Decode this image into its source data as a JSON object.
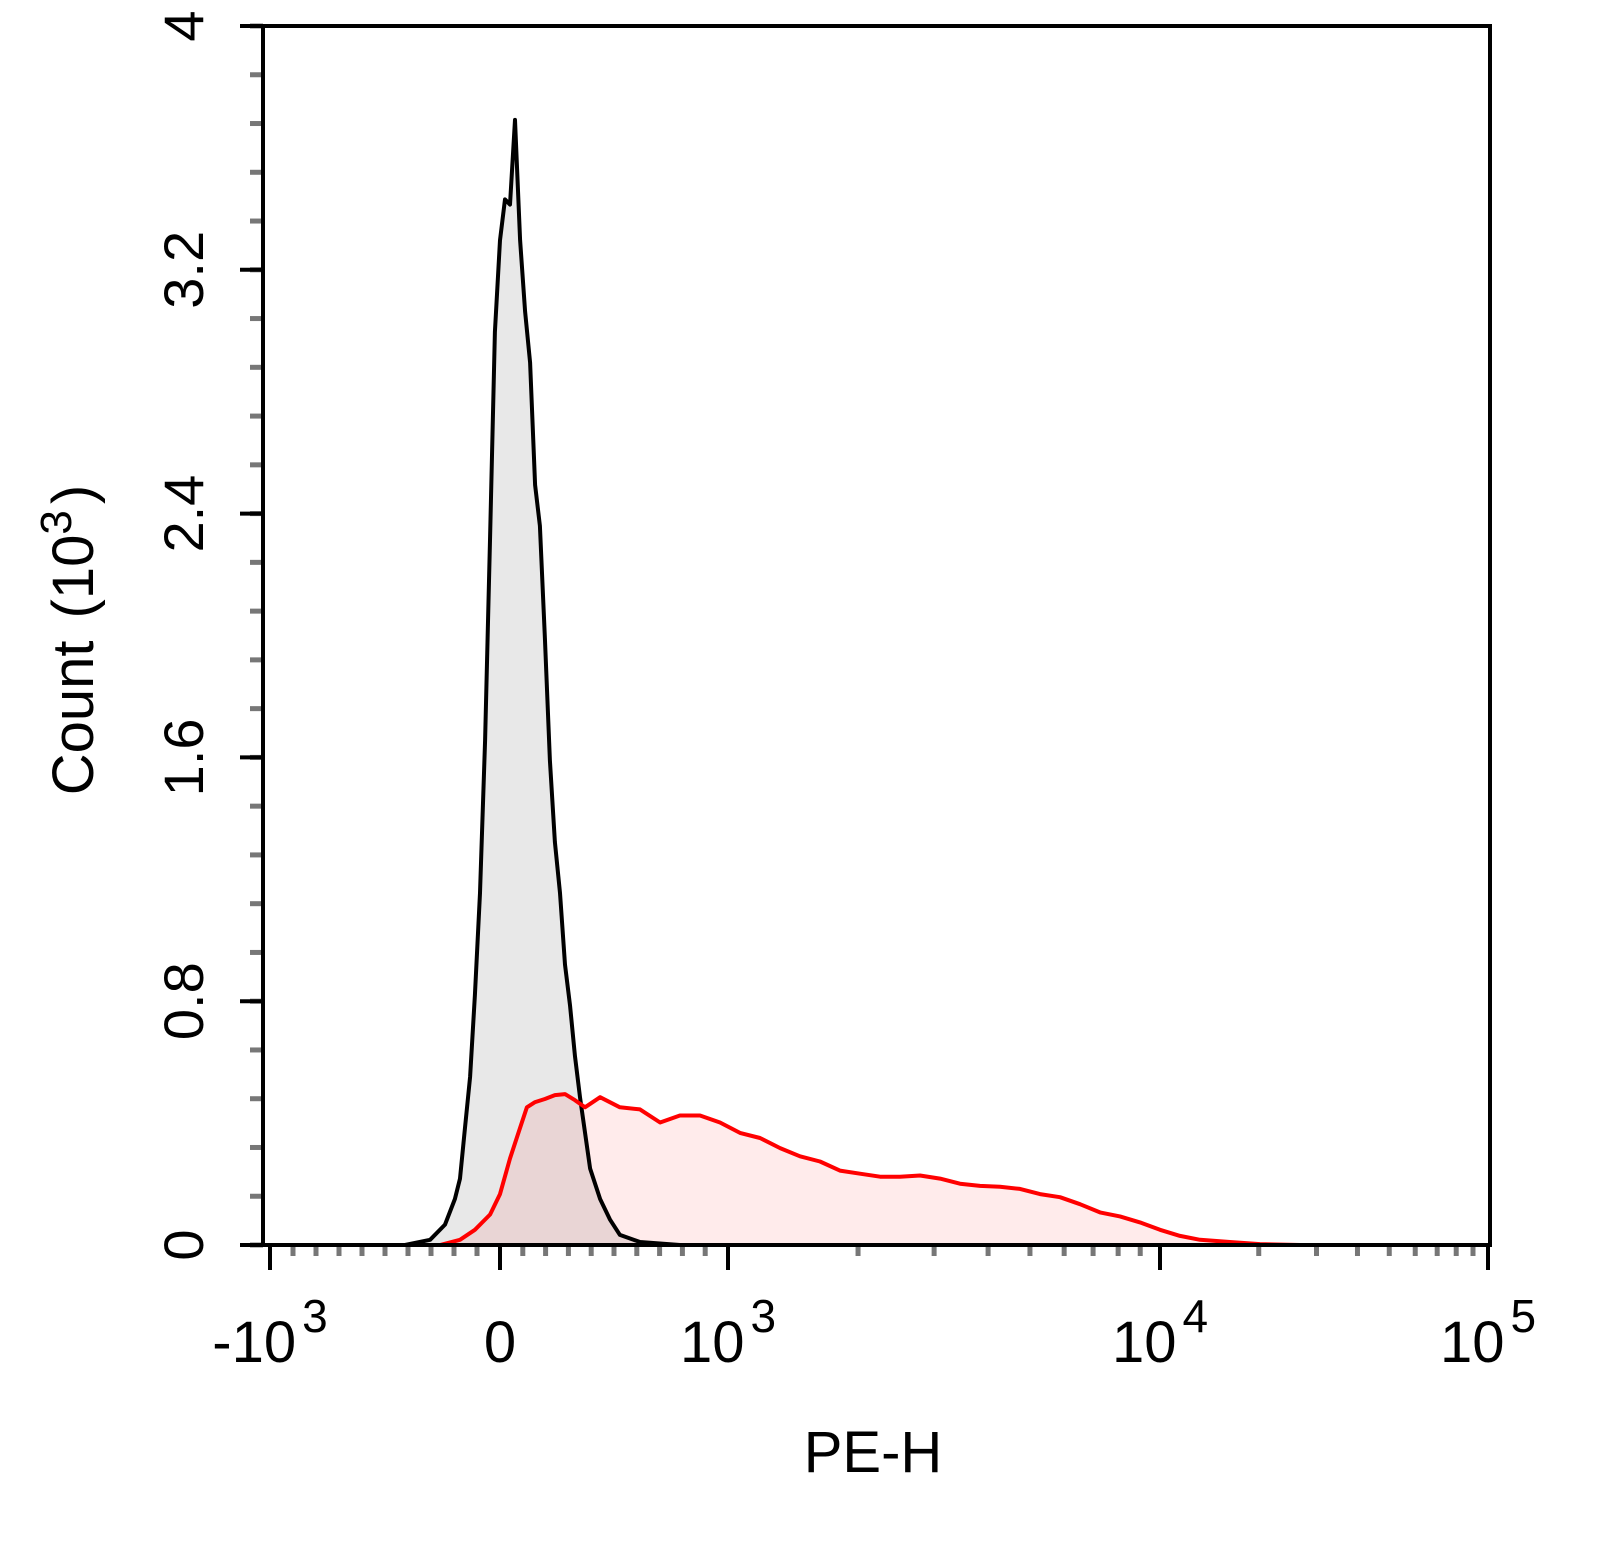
{
  "chart_data": {
    "type": "area",
    "title": "",
    "xlabel": "PE-H",
    "ylabel": "Count",
    "ylabel_unit": {
      "base": "10",
      "exp": "3"
    },
    "x_scale": "biexponential",
    "xlim": [
      -1000,
      100000
    ],
    "ylim": [
      0,
      4000
    ],
    "grid": false,
    "legend": "none",
    "x_ticks": [
      {
        "value": -1000,
        "prefix": "-",
        "base": "10",
        "exp": "3"
      },
      {
        "value": 0,
        "prefix": "",
        "base": "0",
        "exp": ""
      },
      {
        "value": 1000,
        "prefix": "",
        "base": "10",
        "exp": "3"
      },
      {
        "value": 10000,
        "prefix": "",
        "base": "10",
        "exp": "4"
      },
      {
        "value": 100000,
        "prefix": "",
        "base": "10",
        "exp": "5"
      }
    ],
    "y_ticks": [
      {
        "value": 0,
        "label": "0"
      },
      {
        "value": 800,
        "label": "0.8"
      },
      {
        "value": 1600,
        "label": "1.6"
      },
      {
        "value": 2400,
        "label": "2.4"
      },
      {
        "value": 3200,
        "label": "3.2"
      },
      {
        "value": 4000,
        "label": "4"
      }
    ],
    "series": [
      {
        "color": "#000000",
        "fill": "#e8e8e8",
        "points": [
          [
            -413,
            0
          ],
          [
            -304,
            17
          ],
          [
            -239,
            67
          ],
          [
            -196,
            151
          ],
          [
            -174,
            218
          ],
          [
            -152,
            385
          ],
          [
            -130,
            552
          ],
          [
            -109,
            820
          ],
          [
            -87,
            1155
          ],
          [
            -65,
            1657
          ],
          [
            -43,
            2326
          ],
          [
            -22,
            2996
          ],
          [
            0,
            3297
          ],
          [
            22,
            3431
          ],
          [
            44,
            3414
          ],
          [
            66,
            3692
          ],
          [
            88,
            3297
          ],
          [
            110,
            3063
          ],
          [
            132,
            2895
          ],
          [
            154,
            2494
          ],
          [
            175,
            2360
          ],
          [
            197,
            1991
          ],
          [
            219,
            1590
          ],
          [
            241,
            1322
          ],
          [
            263,
            1155
          ],
          [
            285,
            920
          ],
          [
            307,
            787
          ],
          [
            329,
            619
          ],
          [
            351,
            485
          ],
          [
            395,
            251
          ],
          [
            439,
            151
          ],
          [
            482,
            84
          ],
          [
            526,
            33
          ],
          [
            614,
            10
          ],
          [
            789,
            0
          ]
        ]
      },
      {
        "color": "#ff0000",
        "fill": "rgba(255,0,0,0.08)",
        "points": [
          [
            -261,
            0
          ],
          [
            -174,
            17
          ],
          [
            -109,
            50
          ],
          [
            -43,
            100
          ],
          [
            0,
            167
          ],
          [
            44,
            284
          ],
          [
            88,
            385
          ],
          [
            118,
            452
          ],
          [
            154,
            469
          ],
          [
            197,
            479
          ],
          [
            241,
            492
          ],
          [
            285,
            495
          ],
          [
            329,
            475
          ],
          [
            373,
            452
          ],
          [
            439,
            485
          ],
          [
            526,
            452
          ],
          [
            614,
            445
          ],
          [
            702,
            402
          ],
          [
            789,
            425
          ],
          [
            877,
            425
          ],
          [
            965,
            402
          ],
          [
            1066,
            368
          ],
          [
            1186,
            351
          ],
          [
            1320,
            318
          ],
          [
            1468,
            291
          ],
          [
            1633,
            274
          ],
          [
            1816,
            244
          ],
          [
            2021,
            234
          ],
          [
            2249,
            224
          ],
          [
            2501,
            224
          ],
          [
            2782,
            228
          ],
          [
            3096,
            218
          ],
          [
            3443,
            201
          ],
          [
            3831,
            194
          ],
          [
            4262,
            191
          ],
          [
            4742,
            184
          ],
          [
            5275,
            167
          ],
          [
            5869,
            157
          ],
          [
            6529,
            134
          ],
          [
            7263,
            107
          ],
          [
            8080,
            94
          ],
          [
            8990,
            74
          ],
          [
            10000,
            50
          ],
          [
            11508,
            30
          ],
          [
            13244,
            17
          ],
          [
            16340,
            10
          ],
          [
            20165,
            3
          ],
          [
            26730,
            0
          ]
        ]
      }
    ]
  }
}
